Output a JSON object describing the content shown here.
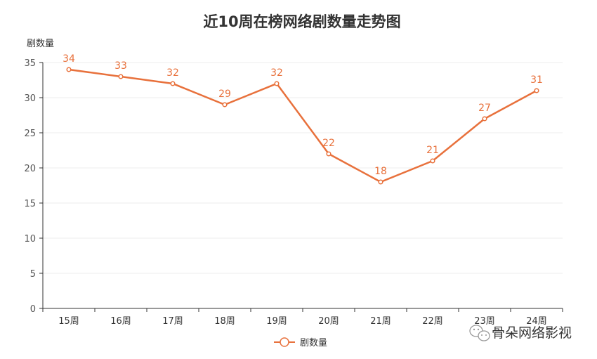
{
  "chart_data": {
    "type": "line",
    "title": "近10周在榜网络剧数量走势图",
    "ylabel": "剧数量",
    "xlabel": "",
    "categories": [
      "15周",
      "16周",
      "17周",
      "18周",
      "19周",
      "20周",
      "21周",
      "22周",
      "23周",
      "24周"
    ],
    "series": [
      {
        "name": "剧数量",
        "values": [
          34,
          33,
          32,
          29,
          32,
          22,
          18,
          21,
          27,
          31
        ]
      }
    ],
    "ylim": [
      0,
      35
    ],
    "yticks": [
      0,
      5,
      10,
      15,
      20,
      25,
      30,
      35
    ],
    "grid": true,
    "legend": "bottom-center",
    "color": "#e8713c"
  },
  "watermark": {
    "text": "骨朵网络影视",
    "icon": "wechat-icon"
  }
}
